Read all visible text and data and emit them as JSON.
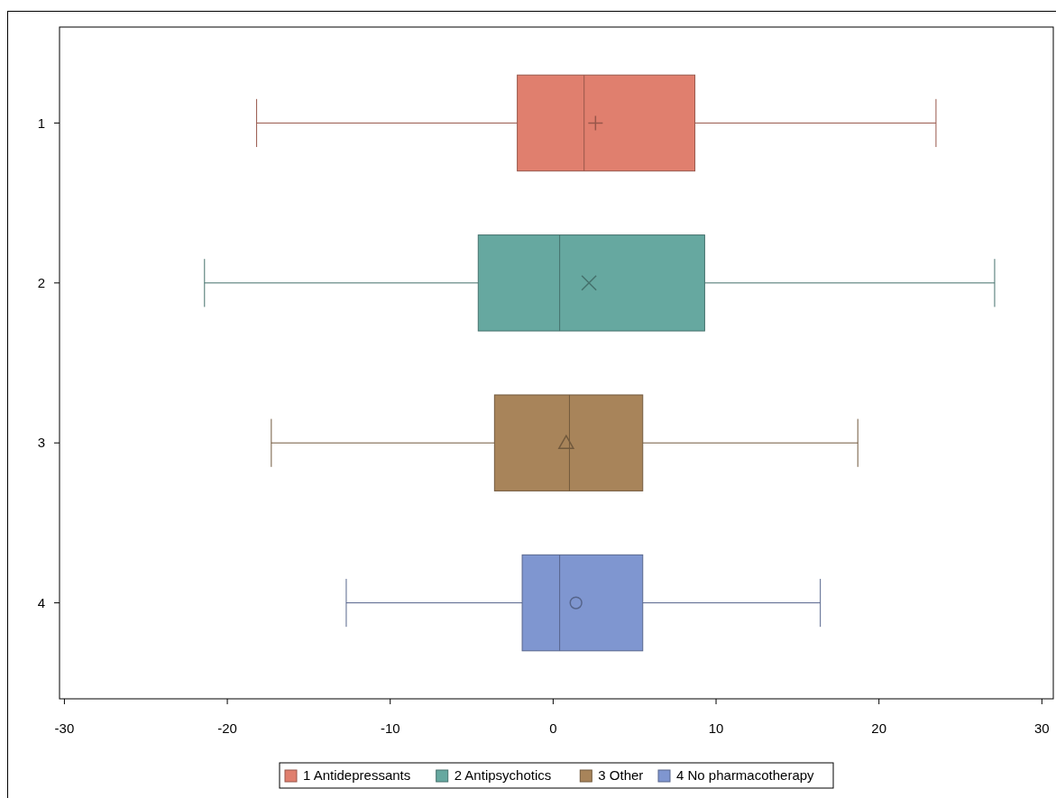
{
  "chart_data": {
    "type": "box",
    "orientation": "horizontal",
    "categories": [
      "1",
      "2",
      "3",
      "4"
    ],
    "xlim": [
      -30.3,
      30.7
    ],
    "xticks": [
      -30,
      -20,
      -10,
      0,
      10,
      20,
      30
    ],
    "legend": "bottom",
    "grid": false,
    "series": [
      {
        "name": "1 Antidepressants",
        "color": "#e07f6e",
        "marker": "plus",
        "boxes": [
          {
            "low": -18.2,
            "q1": -2.2,
            "median": 1.9,
            "q3": 8.7,
            "high": 23.5,
            "mean": 2.6
          },
          null,
          null,
          null
        ]
      },
      {
        "name": "2 Antipsychotics",
        "color": "#66a8a0",
        "marker": "cross",
        "boxes": [
          null,
          {
            "low": -21.4,
            "q1": -4.6,
            "median": 0.4,
            "q3": 9.3,
            "high": 27.1,
            "mean": 2.2
          },
          null,
          null
        ]
      },
      {
        "name": "3 Other",
        "color": "#a8845a",
        "marker": "triangle",
        "boxes": [
          null,
          null,
          {
            "low": -17.3,
            "q1": -3.6,
            "median": 1.0,
            "q3": 5.5,
            "high": 18.7,
            "mean": 0.8
          },
          null
        ]
      },
      {
        "name": "4 No pharmacotherapy",
        "color": "#7f96d0",
        "marker": "circle",
        "boxes": [
          null,
          null,
          null,
          {
            "low": -12.7,
            "q1": -1.9,
            "median": 0.4,
            "q3": 5.5,
            "high": 16.4,
            "mean": 1.4
          }
        ]
      }
    ]
  }
}
